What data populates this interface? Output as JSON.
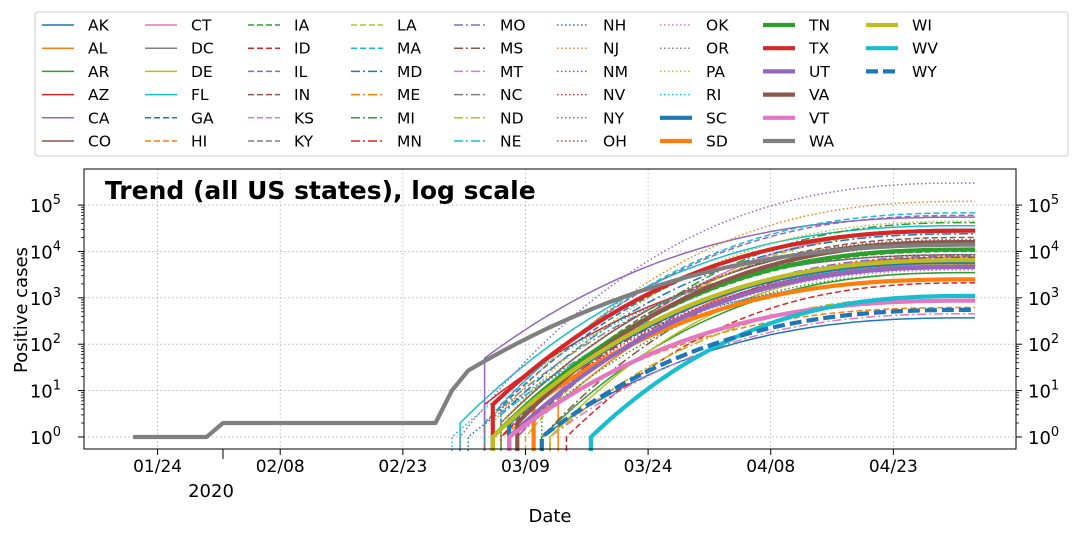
{
  "chart_data": {
    "type": "line",
    "title": "Trend (all US states), log scale",
    "xlabel": "Date",
    "ylabel": "Positive cases",
    "y_scale": "log",
    "ylim": [
      0.55,
      600000
    ],
    "xlim": [
      "2020-01-15",
      "2020-05-08"
    ],
    "x_tick_labels": [
      "01/24",
      "02/08",
      "02/23",
      "03/09",
      "03/24",
      "04/08",
      "04/23"
    ],
    "x_tick_dates": [
      "2020-01-24",
      "2020-02-08",
      "2020-02-23",
      "2020-03-09",
      "2020-03-24",
      "2020-04-08",
      "2020-04-23"
    ],
    "x_minor_tick_date": "2020-02-01",
    "x_offset_label": "2020",
    "y_tick_labels": [
      {
        "base": "10",
        "exp": "0",
        "value": 1
      },
      {
        "base": "10",
        "exp": "1",
        "value": 10
      },
      {
        "base": "10",
        "exp": "2",
        "value": 100
      },
      {
        "base": "10",
        "exp": "3",
        "value": 1000
      },
      {
        "base": "10",
        "exp": "4",
        "value": 10000
      },
      {
        "base": "10",
        "exp": "5",
        "value": 100000
      }
    ],
    "grid": true,
    "legend_position": "top",
    "style_colors": [
      "#1f77b4",
      "#ff7f0e",
      "#2ca02c",
      "#d62728",
      "#9467bd",
      "#8c564b",
      "#e377c2",
      "#7f7f7f",
      "#bcbd22",
      "#17becf"
    ],
    "series": [
      {
        "name": "AK",
        "start": "2020-03-11",
        "first": 1,
        "end": 370
      },
      {
        "name": "AL",
        "start": "2020-03-13",
        "first": 5,
        "end": 7600
      },
      {
        "name": "AR",
        "start": "2020-03-11",
        "first": 1,
        "end": 3500
      },
      {
        "name": "AZ",
        "start": "2020-03-04",
        "first": 5,
        "end": 8500
      },
      {
        "name": "CA",
        "start": "2020-03-04",
        "first": 50,
        "end": 55000
      },
      {
        "name": "CO",
        "start": "2020-03-06",
        "first": 2,
        "end": 17000
      },
      {
        "name": "CT",
        "start": "2020-03-08",
        "first": 1,
        "end": 30000
      },
      {
        "name": "DC",
        "start": "2020-03-07",
        "first": 1,
        "end": 5300
      },
      {
        "name": "DE",
        "start": "2020-03-12",
        "first": 1,
        "end": 5200
      },
      {
        "name": "FL",
        "start": "2020-03-01",
        "first": 2,
        "end": 36000
      },
      {
        "name": "GA",
        "start": "2020-03-04",
        "first": 2,
        "end": 30000
      },
      {
        "name": "HI",
        "start": "2020-03-06",
        "first": 1,
        "end": 620
      },
      {
        "name": "IA",
        "start": "2020-03-08",
        "first": 3,
        "end": 10000
      },
      {
        "name": "ID",
        "start": "2020-03-14",
        "first": 1,
        "end": 2100
      },
      {
        "name": "IL",
        "start": "2020-03-06",
        "first": 5,
        "end": 60000
      },
      {
        "name": "IN",
        "start": "2020-03-06",
        "first": 1,
        "end": 20000
      },
      {
        "name": "KS",
        "start": "2020-03-07",
        "first": 1,
        "end": 5500
      },
      {
        "name": "KY",
        "start": "2020-03-07",
        "first": 1,
        "end": 5000
      },
      {
        "name": "LA",
        "start": "2020-03-09",
        "first": 1,
        "end": 29000
      },
      {
        "name": "MA",
        "start": "2020-03-04",
        "first": 2,
        "end": 68000
      },
      {
        "name": "MD",
        "start": "2020-03-06",
        "first": 3,
        "end": 24000
      },
      {
        "name": "ME",
        "start": "2020-03-12",
        "first": 1,
        "end": 1100
      },
      {
        "name": "MI",
        "start": "2020-03-10",
        "first": 2,
        "end": 42000
      },
      {
        "name": "MN",
        "start": "2020-03-06",
        "first": 1,
        "end": 6000
      },
      {
        "name": "MO",
        "start": "2020-03-08",
        "first": 1,
        "end": 8000
      },
      {
        "name": "MS",
        "start": "2020-03-11",
        "first": 1,
        "end": 7500
      },
      {
        "name": "MT",
        "start": "2020-03-12",
        "first": 1,
        "end": 455
      },
      {
        "name": "NC",
        "start": "2020-03-04",
        "first": 2,
        "end": 11000
      },
      {
        "name": "ND",
        "start": "2020-03-12",
        "first": 1,
        "end": 1100
      },
      {
        "name": "NE",
        "start": "2020-03-06",
        "first": 3,
        "end": 5000
      },
      {
        "name": "NH",
        "start": "2020-03-02",
        "first": 1,
        "end": 2500
      },
      {
        "name": "NJ",
        "start": "2020-03-05",
        "first": 2,
        "end": 120000
      },
      {
        "name": "NM",
        "start": "2020-03-11",
        "first": 3,
        "end": 3500
      },
      {
        "name": "NV",
        "start": "2020-03-06",
        "first": 1,
        "end": 5000
      },
      {
        "name": "NY",
        "start": "2020-03-01",
        "first": 1,
        "end": 300000
      },
      {
        "name": "OH",
        "start": "2020-03-07",
        "first": 3,
        "end": 18000
      },
      {
        "name": "OK",
        "start": "2020-03-07",
        "first": 1,
        "end": 4000
      },
      {
        "name": "OR",
        "start": "2020-03-05",
        "first": 3,
        "end": 2500
      },
      {
        "name": "PA",
        "start": "2020-03-06",
        "first": 2,
        "end": 45000
      },
      {
        "name": "RI",
        "start": "2020-02-29",
        "first": 1,
        "end": 8500
      },
      {
        "name": "SC",
        "start": "2020-03-07",
        "first": 2,
        "end": 6000
      },
      {
        "name": "SD",
        "start": "2020-03-10",
        "first": 5,
        "end": 2500
      },
      {
        "name": "TN",
        "start": "2020-03-05",
        "first": 1,
        "end": 11000
      },
      {
        "name": "TX",
        "start": "2020-03-05",
        "first": 5,
        "end": 28000
      },
      {
        "name": "UT",
        "start": "2020-03-07",
        "first": 1,
        "end": 4600
      },
      {
        "name": "VA",
        "start": "2020-03-08",
        "first": 2,
        "end": 15000
      },
      {
        "name": "VT",
        "start": "2020-03-07",
        "first": 1,
        "end": 870
      },
      {
        "name": "WA",
        "start": "2020-01-21",
        "first": 1,
        "end": 14000
      },
      {
        "name": "WI",
        "start": "2020-03-05",
        "first": 1,
        "end": 6500
      },
      {
        "name": "WV",
        "start": "2020-03-17",
        "first": 1,
        "end": 1100
      },
      {
        "name": "WY",
        "start": "2020-03-11",
        "first": 1,
        "end": 550
      }
    ]
  }
}
